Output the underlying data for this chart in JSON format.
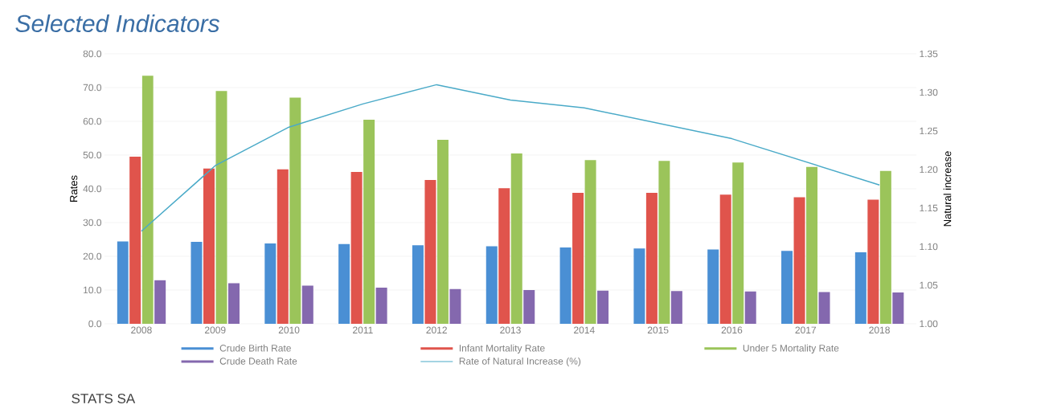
{
  "chart_data": {
    "type": "bar",
    "title": "Selected Indicators",
    "ylabel": "Rates",
    "y2label": "Natural increase",
    "categories": [
      "2008",
      "2009",
      "2010",
      "2011",
      "2012",
      "2013",
      "2014",
      "2015",
      "2016",
      "2017",
      "2018"
    ],
    "series": [
      {
        "name": "Crude Birth Rate",
        "color": "#4a8fd4",
        "values": [
          24.4,
          24.3,
          23.8,
          23.6,
          23.3,
          23.0,
          22.6,
          22.3,
          22.0,
          21.6,
          21.2
        ]
      },
      {
        "name": "Infant Mortality Rate",
        "color": "#e0544c",
        "values": [
          49.5,
          46.0,
          45.8,
          45.0,
          42.6,
          40.2,
          38.8,
          38.8,
          38.3,
          37.5,
          36.8
        ]
      },
      {
        "name": "Under 5 Mortality Rate",
        "color": "#9bc45a",
        "values": [
          73.5,
          69.0,
          67.0,
          60.5,
          54.5,
          50.5,
          48.5,
          48.3,
          47.8,
          46.5,
          45.3
        ]
      },
      {
        "name": "Crude Death Rate",
        "color": "#8468ae",
        "values": [
          12.9,
          12.0,
          11.3,
          10.7,
          10.3,
          10.0,
          9.8,
          9.7,
          9.6,
          9.4,
          9.3
        ]
      },
      {
        "name": "Rate of Natural Increase (%)",
        "color": "#4aaac8",
        "type": "line",
        "axis": "y2",
        "values": [
          1.12,
          1.205,
          1.255,
          1.285,
          1.31,
          1.29,
          1.28,
          1.26,
          1.24,
          1.21,
          1.18
        ]
      }
    ],
    "ylim": [
      0,
      80
    ],
    "yticks": [
      {
        "value": 0,
        "label": "0.0"
      },
      {
        "value": 10,
        "label": "10.0"
      },
      {
        "value": 20,
        "label": "20.0"
      },
      {
        "value": 30,
        "label": "30.0"
      },
      {
        "value": 40,
        "label": "40.0"
      },
      {
        "value": 50,
        "label": "50.0"
      },
      {
        "value": 60,
        "label": "60.0"
      },
      {
        "value": 70,
        "label": "70.0"
      },
      {
        "value": 80,
        "label": "80.0"
      }
    ],
    "y2lim": [
      1.0,
      1.35
    ],
    "y2ticks": [
      {
        "value": 1.0,
        "label": "1.00"
      },
      {
        "value": 1.05,
        "label": "1.05"
      },
      {
        "value": 1.1,
        "label": "1.10"
      },
      {
        "value": 1.15,
        "label": "1.15"
      },
      {
        "value": 1.2,
        "label": "1.20"
      },
      {
        "value": 1.25,
        "label": "1.25"
      },
      {
        "value": 1.3,
        "label": "1.30"
      },
      {
        "value": 1.35,
        "label": "1.35"
      }
    ],
    "grid": "y",
    "legend": "bottom",
    "marker": "none",
    "annotations": [
      "STATS SA"
    ]
  }
}
